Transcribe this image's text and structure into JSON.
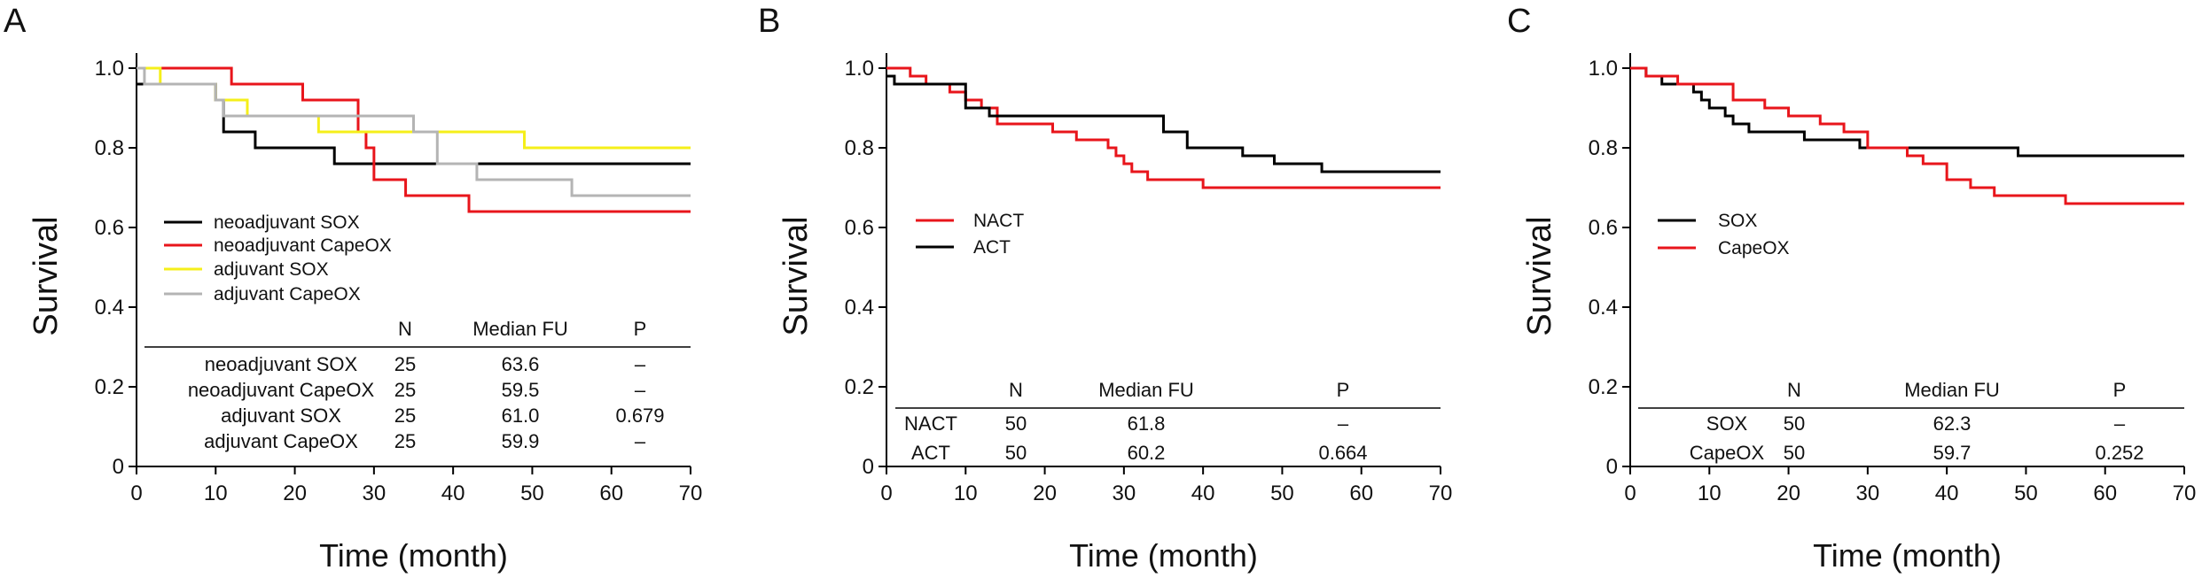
{
  "colors": {
    "black": "#000000",
    "red": "#e8151b",
    "yellow": "#f5ef1a",
    "gray": "#b4b4b4"
  },
  "chart_data": [
    {
      "panel": "A",
      "type": "line",
      "step": "post",
      "xlabel": "Time (month)",
      "ylabel": "Survival",
      "xlim": [
        0,
        70
      ],
      "ylim": [
        0,
        1.0
      ],
      "xticks": [
        "0",
        "10",
        "20",
        "30",
        "40",
        "50",
        "60",
        "70"
      ],
      "yticks": [
        "0",
        "0.2",
        "0.4",
        "0.6",
        "0.8",
        "1.0"
      ],
      "legend_position": "left",
      "series": [
        {
          "name": "neoadjuvant SOX",
          "color": "#000000",
          "x": [
            0,
            9,
            10,
            11,
            15,
            25,
            70
          ],
          "y": [
            0.96,
            0.96,
            0.92,
            0.84,
            0.8,
            0.76,
            0.76
          ]
        },
        {
          "name": "neoadjuvant CapeOX",
          "color": "#e8151b",
          "x": [
            0,
            10,
            12,
            17,
            21,
            28,
            29,
            30,
            34,
            42,
            70
          ],
          "y": [
            1.0,
            1.0,
            0.96,
            0.96,
            0.92,
            0.84,
            0.8,
            0.72,
            0.68,
            0.64,
            0.64
          ]
        },
        {
          "name": "adjuvant SOX",
          "color": "#f5ef1a",
          "x": [
            0,
            3,
            10,
            14,
            23,
            49,
            70
          ],
          "y": [
            1.0,
            0.96,
            0.92,
            0.88,
            0.84,
            0.8,
            0.8
          ]
        },
        {
          "name": "adjuvant CapeOX",
          "color": "#b4b4b4",
          "x": [
            0,
            1,
            10,
            11,
            35,
            38,
            43,
            55,
            70
          ],
          "y": [
            1.0,
            0.96,
            0.92,
            0.88,
            0.84,
            0.76,
            0.72,
            0.68,
            0.68
          ]
        }
      ],
      "table": {
        "headers": [
          "N",
          "Median FU",
          "P"
        ],
        "rows": [
          {
            "label": "neoadjuvant SOX",
            "n": "25",
            "median": "63.6",
            "p": "–"
          },
          {
            "label": "neoadjuvant CapeOX",
            "n": "25",
            "median": "59.5",
            "p": "–"
          },
          {
            "label": "adjuvant SOX",
            "n": "25",
            "median": "61.0",
            "p": "0.679"
          },
          {
            "label": "adjuvant CapeOX",
            "n": "25",
            "median": "59.9",
            "p": "–"
          }
        ]
      }
    },
    {
      "panel": "B",
      "type": "line",
      "step": "post",
      "xlabel": "Time (month)",
      "ylabel": "Survival",
      "xlim": [
        0,
        70
      ],
      "ylim": [
        0,
        1.0
      ],
      "xticks": [
        "0",
        "10",
        "20",
        "30",
        "40",
        "50",
        "60",
        "70"
      ],
      "yticks": [
        "0",
        "0.2",
        "0.4",
        "0.6",
        "0.8",
        "1.0"
      ],
      "legend_position": "left",
      "series": [
        {
          "name": "NACT",
          "color": "#e8151b",
          "x": [
            0,
            3,
            5,
            8,
            10,
            12,
            14,
            21,
            24,
            28,
            29,
            30,
            31,
            33,
            40,
            70
          ],
          "y": [
            1.0,
            0.98,
            0.96,
            0.94,
            0.92,
            0.9,
            0.86,
            0.84,
            0.82,
            0.8,
            0.78,
            0.76,
            0.74,
            0.72,
            0.7,
            0.7
          ]
        },
        {
          "name": "ACT",
          "color": "#000000",
          "x": [
            0,
            1,
            3,
            10,
            13,
            15,
            35,
            38,
            45,
            49,
            55,
            70
          ],
          "y": [
            0.98,
            0.96,
            0.96,
            0.9,
            0.88,
            0.88,
            0.84,
            0.8,
            0.78,
            0.76,
            0.74,
            0.74
          ]
        }
      ],
      "table": {
        "headers": [
          "N",
          "Median FU",
          "P"
        ],
        "rows": [
          {
            "label": "NACT",
            "n": "50",
            "median": "61.8",
            "p": "–"
          },
          {
            "label": "ACT",
            "n": "50",
            "median": "60.2",
            "p": "0.664"
          }
        ]
      }
    },
    {
      "panel": "C",
      "type": "line",
      "step": "post",
      "xlabel": "Time (month)",
      "ylabel": "Survival",
      "xlim": [
        0,
        70
      ],
      "ylim": [
        0,
        1.0
      ],
      "xticks": [
        "0",
        "10",
        "20",
        "30",
        "40",
        "50",
        "60",
        "70"
      ],
      "yticks": [
        "0",
        "0.2",
        "0.4",
        "0.6",
        "0.8",
        "1.0"
      ],
      "legend_position": "left",
      "series": [
        {
          "name": "SOX",
          "color": "#000000",
          "x": [
            0,
            2,
            4,
            8,
            9,
            10,
            12,
            13,
            15,
            22,
            29,
            49,
            70
          ],
          "y": [
            1.0,
            0.98,
            0.96,
            0.94,
            0.92,
            0.9,
            0.88,
            0.86,
            0.84,
            0.82,
            0.8,
            0.78,
            0.78
          ]
        },
        {
          "name": "CapeOX",
          "color": "#e8151b",
          "x": [
            0,
            2,
            6,
            13,
            17,
            20,
            24,
            27,
            30,
            35,
            37,
            40,
            43,
            46,
            55,
            70
          ],
          "y": [
            1.0,
            0.98,
            0.96,
            0.92,
            0.9,
            0.88,
            0.86,
            0.84,
            0.8,
            0.78,
            0.76,
            0.72,
            0.7,
            0.68,
            0.66,
            0.66
          ]
        }
      ],
      "table": {
        "headers": [
          "N",
          "Median FU",
          "P"
        ],
        "rows": [
          {
            "label": "SOX",
            "n": "50",
            "median": "62.3",
            "p": "–"
          },
          {
            "label": "CapeOX",
            "n": "50",
            "median": "59.7",
            "p": "0.252"
          }
        ]
      }
    }
  ]
}
